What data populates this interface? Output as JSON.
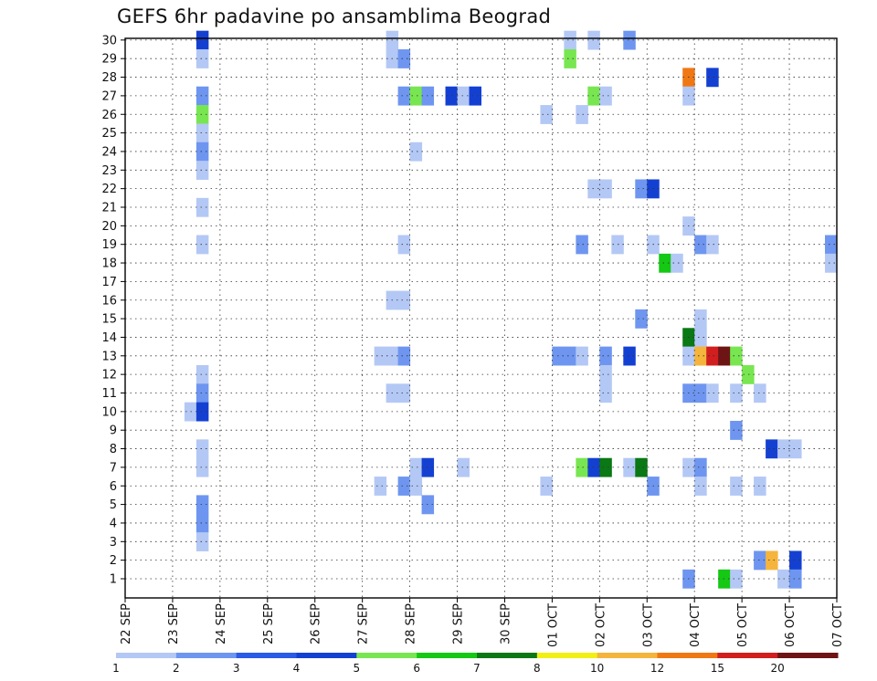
{
  "chart_data": {
    "type": "heatmap",
    "title": "GEFS 6hr padavine po ansamblima Beograd",
    "xlabel": "",
    "ylabel": "",
    "x_ticks": [
      "22 SEP",
      "23 SEP",
      "24 SEP",
      "25 SEP",
      "26 SEP",
      "27 SEP",
      "28 SEP",
      "29 SEP",
      "30 SEP",
      "01 OCT",
      "02 OCT",
      "03 OCT",
      "04 OCT",
      "05 OCT",
      "06 OCT",
      "07 OCT"
    ],
    "y_ticks": [
      "1",
      "2",
      "3",
      "4",
      "5",
      "6",
      "7",
      "8",
      "9",
      "10",
      "11",
      "12",
      "13",
      "14",
      "15",
      "16",
      "17",
      "18",
      "19",
      "20",
      "21",
      "22",
      "23",
      "24",
      "25",
      "26",
      "27",
      "28",
      "29",
      "30"
    ],
    "x_unit": "6-hour step from 22 SEP 00Z",
    "ylim": [
      1,
      30
    ],
    "grid": true,
    "colorbar": {
      "labels": [
        "1",
        "2",
        "3",
        "4",
        "5",
        "6",
        "7",
        "8",
        "10",
        "12",
        "15",
        "20"
      ],
      "colors": [
        "#b4c8f5",
        "#6e96f0",
        "#2b5ae6",
        "#1440d2",
        "#78e650",
        "#14c814",
        "#0a7814",
        "#f0f014",
        "#f5b43c",
        "#f07814",
        "#d21e1e",
        "#6e1414"
      ]
    },
    "cells": [
      [
        6,
        30,
        "#1440d2"
      ],
      [
        6,
        29,
        "#b4c8f5"
      ],
      [
        6,
        27,
        "#6e96f0"
      ],
      [
        6,
        26,
        "#78e650"
      ],
      [
        6,
        25,
        "#b4c8f5"
      ],
      [
        6,
        24,
        "#6e96f0"
      ],
      [
        6,
        23,
        "#b4c8f5"
      ],
      [
        6,
        21,
        "#b4c8f5"
      ],
      [
        6,
        19,
        "#b4c8f5"
      ],
      [
        6,
        12,
        "#b4c8f5"
      ],
      [
        6,
        11,
        "#6e96f0"
      ],
      [
        5,
        10,
        "#b4c8f5"
      ],
      [
        6,
        10,
        "#1440d2"
      ],
      [
        6,
        8,
        "#b4c8f5"
      ],
      [
        6,
        7,
        "#b4c8f5"
      ],
      [
        6,
        5,
        "#6e96f0"
      ],
      [
        6,
        4,
        "#6e96f0"
      ],
      [
        6,
        3,
        "#b4c8f5"
      ],
      [
        22,
        30,
        "#b4c8f5"
      ],
      [
        22,
        29,
        "#b4c8f5"
      ],
      [
        23,
        29,
        "#6e96f0"
      ],
      [
        23,
        27,
        "#6e96f0"
      ],
      [
        24,
        27,
        "#78e650"
      ],
      [
        25,
        27,
        "#6e96f0"
      ],
      [
        27,
        27,
        "#1440d2"
      ],
      [
        28,
        27,
        "#b4c8f5"
      ],
      [
        29,
        27,
        "#1440d2"
      ],
      [
        24,
        24,
        "#b4c8f5"
      ],
      [
        23,
        19,
        "#b4c8f5"
      ],
      [
        22,
        16,
        "#b4c8f5"
      ],
      [
        23,
        16,
        "#b4c8f5"
      ],
      [
        21,
        13,
        "#b4c8f5"
      ],
      [
        22,
        13,
        "#b4c8f5"
      ],
      [
        23,
        13,
        "#6e96f0"
      ],
      [
        22,
        11,
        "#b4c8f5"
      ],
      [
        23,
        11,
        "#b4c8f5"
      ],
      [
        24,
        7,
        "#b4c8f5"
      ],
      [
        25,
        7,
        "#1440d2"
      ],
      [
        28,
        7,
        "#b4c8f5"
      ],
      [
        21,
        6,
        "#b4c8f5"
      ],
      [
        23,
        6,
        "#6e96f0"
      ],
      [
        24,
        6,
        "#b4c8f5"
      ],
      [
        25,
        5,
        "#6e96f0"
      ],
      [
        37,
        30,
        "#b4c8f5"
      ],
      [
        39,
        30,
        "#b4c8f5"
      ],
      [
        42,
        30,
        "#6e96f0"
      ],
      [
        37,
        29,
        "#78e650"
      ],
      [
        39,
        27,
        "#78e650"
      ],
      [
        40,
        27,
        "#b4c8f5"
      ],
      [
        35,
        26,
        "#b4c8f5"
      ],
      [
        38,
        26,
        "#b4c8f5"
      ],
      [
        39,
        22,
        "#b4c8f5"
      ],
      [
        40,
        22,
        "#b4c8f5"
      ],
      [
        43,
        22,
        "#6e96f0"
      ],
      [
        44,
        22,
        "#1440d2"
      ],
      [
        38,
        19,
        "#6e96f0"
      ],
      [
        41,
        19,
        "#b4c8f5"
      ],
      [
        44,
        19,
        "#b4c8f5"
      ],
      [
        45,
        18,
        "#14c814"
      ],
      [
        46,
        18,
        "#b4c8f5"
      ],
      [
        43,
        15,
        "#6e96f0"
      ],
      [
        36,
        13,
        "#6e96f0"
      ],
      [
        37,
        13,
        "#6e96f0"
      ],
      [
        38,
        13,
        "#b4c8f5"
      ],
      [
        40,
        13,
        "#6e96f0"
      ],
      [
        42,
        13,
        "#1440d2"
      ],
      [
        40,
        12,
        "#b4c8f5"
      ],
      [
        40,
        11,
        "#b4c8f5"
      ],
      [
        38,
        7,
        "#78e650"
      ],
      [
        39,
        7,
        "#1440d2"
      ],
      [
        40,
        7,
        "#0a7814"
      ],
      [
        42,
        7,
        "#b4c8f5"
      ],
      [
        43,
        7,
        "#0a7814"
      ],
      [
        35,
        6,
        "#b4c8f5"
      ],
      [
        44,
        6,
        "#6e96f0"
      ],
      [
        47,
        28,
        "#f07814"
      ],
      [
        49,
        28,
        "#1440d2"
      ],
      [
        47,
        27,
        "#b4c8f5"
      ],
      [
        47,
        20,
        "#b4c8f5"
      ],
      [
        48,
        19,
        "#6e96f0"
      ],
      [
        49,
        19,
        "#b4c8f5"
      ],
      [
        59,
        19,
        "#6e96f0"
      ],
      [
        59,
        18,
        "#b4c8f5"
      ],
      [
        47,
        14,
        "#0a7814"
      ],
      [
        48,
        15,
        "#b4c8f5"
      ],
      [
        48,
        14,
        "#b4c8f5"
      ],
      [
        47,
        13,
        "#b4c8f5"
      ],
      [
        48,
        13,
        "#f5b43c"
      ],
      [
        49,
        13,
        "#d21e1e"
      ],
      [
        50,
        13,
        "#6e1414"
      ],
      [
        51,
        13,
        "#78e650"
      ],
      [
        52,
        12,
        "#78e650"
      ],
      [
        47,
        11,
        "#6e96f0"
      ],
      [
        48,
        11,
        "#6e96f0"
      ],
      [
        49,
        11,
        "#b4c8f5"
      ],
      [
        51,
        11,
        "#b4c8f5"
      ],
      [
        53,
        11,
        "#b4c8f5"
      ],
      [
        51,
        9,
        "#6e96f0"
      ],
      [
        54,
        8,
        "#1440d2"
      ],
      [
        55,
        8,
        "#b4c8f5"
      ],
      [
        56,
        8,
        "#b4c8f5"
      ],
      [
        47,
        7,
        "#b4c8f5"
      ],
      [
        48,
        7,
        "#6e96f0"
      ],
      [
        48,
        6,
        "#b4c8f5"
      ],
      [
        51,
        6,
        "#b4c8f5"
      ],
      [
        53,
        6,
        "#b4c8f5"
      ],
      [
        53,
        2,
        "#6e96f0"
      ],
      [
        54,
        2,
        "#f5b43c"
      ],
      [
        56,
        2,
        "#1440d2"
      ],
      [
        47,
        1,
        "#6e96f0"
      ],
      [
        50,
        1,
        "#14c814"
      ],
      [
        51,
        1,
        "#b4c8f5"
      ],
      [
        55,
        1,
        "#b4c8f5"
      ],
      [
        56,
        1,
        "#6e96f0"
      ]
    ]
  }
}
